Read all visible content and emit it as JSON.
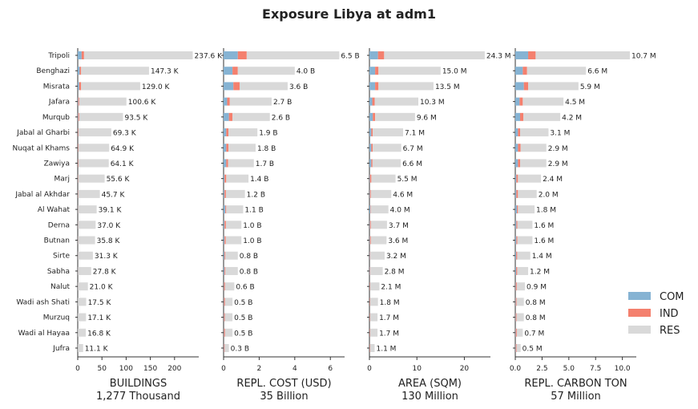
{
  "title": "Exposure Libya at adm1",
  "colors": {
    "COM": "#86b3d3",
    "IND": "#f4806e",
    "RES": "#d9d9d9"
  },
  "legend": [
    "COM",
    "IND",
    "RES"
  ],
  "chart_data": {
    "type": "bar",
    "orientation": "horizontal",
    "stacked": true,
    "categories": [
      "Tripoli",
      "Benghazi",
      "Misrata",
      "Jafara",
      "Murqub",
      "Jabal al Gharbi",
      "Nuqat al Khams",
      "Zawiya",
      "Marj",
      "Jabal al Akhdar",
      "Al Wahat",
      "Derna",
      "Butnan",
      "Sirte",
      "Sabha",
      "Nalut",
      "Wadi ash Shati",
      "Murzuq",
      "Wadi al Hayaa",
      "Jufra"
    ],
    "legend_position": "right",
    "panels": [
      {
        "xlabel": "BUILDINGS",
        "sublabel": "1,277 Thousand",
        "xlim": [
          0,
          250
        ],
        "ticks": [
          0,
          50,
          100,
          150,
          200
        ],
        "labels": [
          "237.6 K",
          "147.3 K",
          "129.0 K",
          "100.6 K",
          "93.5 K",
          "69.3 K",
          "64.9 K",
          "64.1 K",
          "55.6 K",
          "45.7 K",
          "39.1 K",
          "37.0 K",
          "35.8 K",
          "31.3 K",
          "27.8 K",
          "21.0 K",
          "17.5 K",
          "17.1 K",
          "16.8 K",
          "11.1 K"
        ],
        "series": [
          {
            "name": "COM",
            "values": [
              8,
              4,
              3,
              1,
              1,
              0.5,
              0.5,
              0.5,
              0.3,
              0.3,
              0.3,
              0.2,
              0.2,
              0.2,
              0.2,
              0.1,
              0.1,
              0.1,
              0.1,
              0.1
            ]
          },
          {
            "name": "IND",
            "values": [
              5,
              3,
              4,
              2,
              2,
              1,
              1,
              1,
              0.5,
              0.5,
              0.3,
              0.3,
              0.3,
              0.2,
              0.2,
              0.2,
              0.1,
              0.1,
              0.1,
              0.1
            ]
          },
          {
            "name": "RES",
            "values": [
              224.6,
              140.3,
              122,
              97.6,
              90.5,
              67.8,
              63.4,
              62.6,
              54.8,
              44.9,
              38.5,
              36.5,
              35.3,
              30.9,
              27.4,
              20.7,
              17.3,
              16.9,
              16.6,
              10.9
            ]
          }
        ]
      },
      {
        "xlabel": "REPL. COST (USD)",
        "sublabel": "35 Billion",
        "xlim": [
          0,
          6.8
        ],
        "ticks": [
          0,
          2,
          4,
          6
        ],
        "labels": [
          "6.5 B",
          "4.0 B",
          "3.6 B",
          "2.7 B",
          "2.6 B",
          "1.9 B",
          "1.8 B",
          "1.7 B",
          "1.4 B",
          "1.2 B",
          "1.1 B",
          "1.0 B",
          "1.0 B",
          "0.8 B",
          "0.8 B",
          "0.6 B",
          "0.5 B",
          "0.5 B",
          "0.5 B",
          "0.3 B"
        ],
        "series": [
          {
            "name": "COM",
            "values": [
              0.8,
              0.5,
              0.55,
              0.2,
              0.3,
              0.15,
              0.15,
              0.15,
              0.05,
              0.05,
              0.1,
              0.05,
              0.05,
              0.05,
              0.05,
              0.02,
              0.02,
              0.02,
              0.02,
              0.02
            ]
          },
          {
            "name": "IND",
            "values": [
              0.5,
              0.3,
              0.35,
              0.15,
              0.2,
              0.12,
              0.12,
              0.1,
              0.1,
              0.08,
              0.05,
              0.08,
              0.07,
              0.05,
              0.05,
              0.06,
              0.06,
              0.05,
              0.06,
              0.04
            ]
          },
          {
            "name": "RES",
            "values": [
              5.2,
              3.2,
              2.7,
              2.35,
              2.1,
              1.63,
              1.53,
              1.45,
              1.25,
              1.07,
              0.95,
              0.87,
              0.88,
              0.7,
              0.7,
              0.52,
              0.42,
              0.43,
              0.42,
              0.24
            ]
          }
        ]
      },
      {
        "xlabel": "AREA (SQM)",
        "sublabel": "130 Million",
        "xlim": [
          0,
          25.5
        ],
        "ticks": [
          0,
          10,
          20
        ],
        "labels": [
          "24.3 M",
          "15.0 M",
          "13.5 M",
          "10.3 M",
          "9.6 M",
          "7.1 M",
          "6.7 M",
          "6.6 M",
          "5.5 M",
          "4.6 M",
          "4.0 M",
          "3.7 M",
          "3.6 M",
          "3.2 M",
          "2.8 M",
          "2.1 M",
          "1.8 M",
          "1.7 M",
          "1.7 M",
          "1.1 M"
        ],
        "series": [
          {
            "name": "COM",
            "values": [
              1.8,
              1.2,
              1.2,
              0.6,
              0.7,
              0.4,
              0.4,
              0.4,
              0.1,
              0.1,
              0.2,
              0.1,
              0.1,
              0.1,
              0.1,
              0.05,
              0.05,
              0.05,
              0.05,
              0.05
            ]
          },
          {
            "name": "IND",
            "values": [
              1.3,
              0.7,
              0.7,
              0.5,
              0.5,
              0.3,
              0.3,
              0.25,
              0.3,
              0.2,
              0.1,
              0.2,
              0.2,
              0.1,
              0.1,
              0.1,
              0.1,
              0.1,
              0.1,
              0.1
            ]
          },
          {
            "name": "RES",
            "values": [
              21.2,
              13.1,
              11.6,
              9.2,
              8.4,
              6.4,
              6,
              5.95,
              5.1,
              4.3,
              3.7,
              3.4,
              3.3,
              3,
              2.6,
              1.95,
              1.65,
              1.55,
              1.55,
              0.95
            ]
          }
        ]
      },
      {
        "xlabel": "REPL. CARBON TON",
        "sublabel": "57 Million",
        "xlim": [
          0,
          11.3
        ],
        "ticks": [
          0.0,
          2.5,
          5.0,
          7.5,
          10.0
        ],
        "tick_labels": [
          "0.0",
          "2.5",
          "5.0",
          "7.5",
          "10.0"
        ],
        "labels": [
          "10.7 M",
          "6.6 M",
          "5.9 M",
          "4.5 M",
          "4.2 M",
          "3.1 M",
          "2.9 M",
          "2.9 M",
          "2.4 M",
          "2.0 M",
          "1.8 M",
          "1.6 M",
          "1.6 M",
          "1.4 M",
          "1.2 M",
          "0.9 M",
          "0.8 M",
          "0.8 M",
          "0.7 M",
          "0.5 M"
        ],
        "series": [
          {
            "name": "COM",
            "values": [
              1.2,
              0.7,
              0.8,
              0.4,
              0.45,
              0.25,
              0.25,
              0.25,
              0.1,
              0.1,
              0.15,
              0.1,
              0.1,
              0.08,
              0.08,
              0.04,
              0.04,
              0.04,
              0.04,
              0.04
            ]
          },
          {
            "name": "IND",
            "values": [
              0.7,
              0.4,
              0.4,
              0.3,
              0.3,
              0.2,
              0.25,
              0.2,
              0.15,
              0.15,
              0.1,
              0.1,
              0.1,
              0.1,
              0.1,
              0.1,
              0.08,
              0.08,
              0.1,
              0.08
            ]
          },
          {
            "name": "RES",
            "values": [
              8.8,
              5.5,
              4.7,
              3.8,
              3.45,
              2.65,
              2.4,
              2.45,
              2.15,
              1.75,
              1.55,
              1.4,
              1.4,
              1.22,
              1.02,
              0.76,
              0.68,
              0.68,
              0.56,
              0.38
            ]
          }
        ]
      }
    ]
  }
}
